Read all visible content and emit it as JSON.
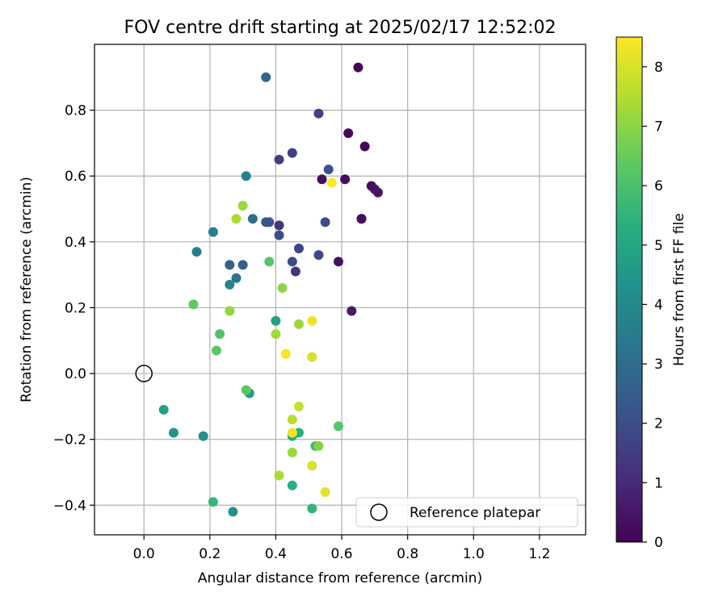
{
  "chart_data": {
    "type": "scatter",
    "title": "FOV centre drift starting at 2025/02/17 12:52:02",
    "xlabel": "Angular distance from reference (arcmin)",
    "ylabel": "Rotation from reference (arcmin)",
    "xlim": [
      -0.15,
      1.34
    ],
    "ylim": [
      -0.49,
      1.0
    ],
    "x_ticks": [
      0.0,
      0.2,
      0.4,
      0.6,
      0.8,
      1.0,
      1.2
    ],
    "x_tick_labels": [
      "0.0",
      "0.2",
      "0.4",
      "0.6",
      "0.8",
      "1.0",
      "1.2"
    ],
    "y_ticks": [
      -0.4,
      -0.2,
      0.0,
      0.2,
      0.4,
      0.6,
      0.8
    ],
    "y_tick_labels": [
      "−0.4",
      "−0.2",
      "0.0",
      "0.2",
      "0.4",
      "0.6",
      "0.8"
    ],
    "grid": true,
    "legend": {
      "position": "lower-right",
      "entries": [
        "Reference platepar"
      ]
    },
    "colorbar": {
      "label": "Hours from first FF file",
      "colormap": "viridis",
      "range": [
        0,
        8.5
      ],
      "ticks": [
        0,
        1,
        2,
        3,
        4,
        5,
        6,
        7,
        8
      ],
      "tick_labels": [
        "0",
        "1",
        "2",
        "3",
        "4",
        "5",
        "6",
        "7",
        "8"
      ]
    },
    "reference_point": {
      "x": 0.0,
      "y": 0.0,
      "name": "Reference platepar"
    },
    "points": [
      {
        "x": 0.65,
        "y": 0.93,
        "c": 0.1
      },
      {
        "x": 0.62,
        "y": 0.73,
        "c": 0.2
      },
      {
        "x": 0.67,
        "y": 0.69,
        "c": 0.2
      },
      {
        "x": 0.54,
        "y": 0.59,
        "c": 0.3
      },
      {
        "x": 0.61,
        "y": 0.59,
        "c": 0.3
      },
      {
        "x": 0.69,
        "y": 0.57,
        "c": 0.3
      },
      {
        "x": 0.7,
        "y": 0.56,
        "c": 0.4
      },
      {
        "x": 0.71,
        "y": 0.55,
        "c": 0.5
      },
      {
        "x": 0.66,
        "y": 0.47,
        "c": 0.3
      },
      {
        "x": 0.66,
        "y": 0.47,
        "c": 0.4
      },
      {
        "x": 0.59,
        "y": 0.34,
        "c": 0.4
      },
      {
        "x": 0.63,
        "y": 0.19,
        "c": 0.6
      },
      {
        "x": 0.53,
        "y": 0.79,
        "c": 1.6
      },
      {
        "x": 0.45,
        "y": 0.67,
        "c": 1.6
      },
      {
        "x": 0.41,
        "y": 0.65,
        "c": 1.5
      },
      {
        "x": 0.56,
        "y": 0.62,
        "c": 2.1
      },
      {
        "x": 0.55,
        "y": 0.46,
        "c": 2.0
      },
      {
        "x": 0.41,
        "y": 0.45,
        "c": 1.3
      },
      {
        "x": 0.41,
        "y": 0.42,
        "c": 2.0
      },
      {
        "x": 0.47,
        "y": 0.38,
        "c": 1.7
      },
      {
        "x": 0.53,
        "y": 0.36,
        "c": 1.9
      },
      {
        "x": 0.45,
        "y": 0.34,
        "c": 2.0
      },
      {
        "x": 0.46,
        "y": 0.31,
        "c": 1.2
      },
      {
        "x": 0.37,
        "y": 0.9,
        "c": 2.8
      },
      {
        "x": 0.31,
        "y": 0.6,
        "c": 3.7
      },
      {
        "x": 0.37,
        "y": 0.46,
        "c": 2.3
      },
      {
        "x": 0.38,
        "y": 0.46,
        "c": 2.2
      },
      {
        "x": 0.33,
        "y": 0.47,
        "c": 3.0
      },
      {
        "x": 0.21,
        "y": 0.43,
        "c": 3.6
      },
      {
        "x": 0.16,
        "y": 0.37,
        "c": 3.6
      },
      {
        "x": 0.26,
        "y": 0.33,
        "c": 2.6
      },
      {
        "x": 0.3,
        "y": 0.33,
        "c": 2.5
      },
      {
        "x": 0.28,
        "y": 0.29,
        "c": 3.2
      },
      {
        "x": 0.26,
        "y": 0.27,
        "c": 3.9
      },
      {
        "x": 0.4,
        "y": 0.16,
        "c": 4.8
      },
      {
        "x": 0.32,
        "y": -0.06,
        "c": 4.7
      },
      {
        "x": 0.06,
        "y": -0.11,
        "c": 4.8
      },
      {
        "x": 0.09,
        "y": -0.18,
        "c": 4.4
      },
      {
        "x": 0.18,
        "y": -0.19,
        "c": 4.2
      },
      {
        "x": 0.27,
        "y": -0.42,
        "c": 4.2
      },
      {
        "x": 0.21,
        "y": -0.39,
        "c": 5.6
      },
      {
        "x": 0.45,
        "y": -0.34,
        "c": 5.3
      },
      {
        "x": 0.51,
        "y": -0.41,
        "c": 5.5
      },
      {
        "x": 0.45,
        "y": -0.19,
        "c": 5.2
      },
      {
        "x": 0.47,
        "y": -0.18,
        "c": 5.3
      },
      {
        "x": 0.52,
        "y": -0.22,
        "c": 5.8
      },
      {
        "x": 0.59,
        "y": -0.16,
        "c": 6.2
      },
      {
        "x": 0.31,
        "y": -0.05,
        "c": 6.3
      },
      {
        "x": 0.38,
        "y": 0.34,
        "c": 6.2
      },
      {
        "x": 0.15,
        "y": 0.21,
        "c": 6.4
      },
      {
        "x": 0.23,
        "y": 0.12,
        "c": 6.1
      },
      {
        "x": 0.22,
        "y": 0.07,
        "c": 6.3
      },
      {
        "x": 0.42,
        "y": 0.26,
        "c": 7.0
      },
      {
        "x": 0.3,
        "y": 0.51,
        "c": 7.2
      },
      {
        "x": 0.28,
        "y": 0.47,
        "c": 7.4
      },
      {
        "x": 0.26,
        "y": 0.19,
        "c": 7.1
      },
      {
        "x": 0.47,
        "y": 0.15,
        "c": 7.2
      },
      {
        "x": 0.4,
        "y": 0.12,
        "c": 7.3
      },
      {
        "x": 0.53,
        "y": -0.22,
        "c": 6.9
      },
      {
        "x": 0.45,
        "y": -0.24,
        "c": 7.2
      },
      {
        "x": 0.41,
        "y": -0.31,
        "c": 7.4
      },
      {
        "x": 0.45,
        "y": -0.14,
        "c": 7.6
      },
      {
        "x": 0.47,
        "y": -0.1,
        "c": 7.8
      },
      {
        "x": 0.51,
        "y": -0.28,
        "c": 8.0
      },
      {
        "x": 0.55,
        "y": -0.36,
        "c": 8.1
      },
      {
        "x": 0.45,
        "y": -0.18,
        "c": 8.3
      },
      {
        "x": 0.51,
        "y": 0.16,
        "c": 8.3
      },
      {
        "x": 0.51,
        "y": 0.05,
        "c": 8.0
      },
      {
        "x": 0.43,
        "y": 0.06,
        "c": 8.4
      },
      {
        "x": 0.57,
        "y": 0.58,
        "c": 8.5
      }
    ]
  }
}
